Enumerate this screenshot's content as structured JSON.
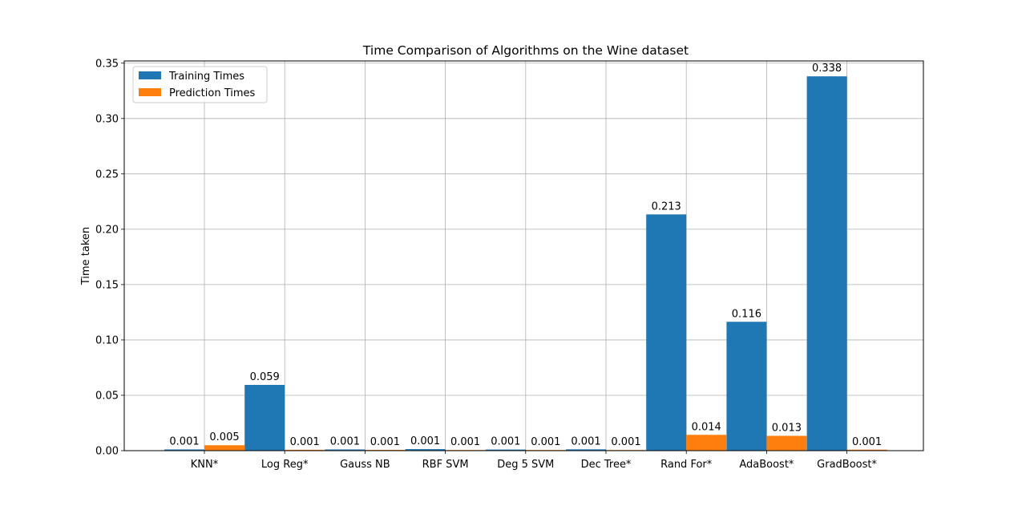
{
  "chart_data": {
    "type": "bar",
    "title": "Time Comparison of Algorithms on the Wine dataset",
    "xlabel": "",
    "ylabel": "Time taken",
    "categories": [
      "KNN*",
      "Log Reg*",
      "Gauss NB",
      "RBF SVM",
      "Deg 5 SVM",
      "Dec Tree*",
      "Rand For*",
      "AdaBoost*",
      "GradBoost*"
    ],
    "series": [
      {
        "name": "Training Times",
        "color": "#1f77b4",
        "values": [
          0.0011,
          0.0594,
          0.0011,
          0.0014,
          0.001,
          0.0012,
          0.2134,
          0.1164,
          0.3381
        ],
        "labels": [
          "0.001",
          "0.059",
          "0.001",
          "0.001",
          "0.001",
          "0.001",
          "0.213",
          "0.116",
          "0.338"
        ]
      },
      {
        "name": "Prediction Times",
        "color": "#ff7f0e",
        "values": [
          0.0049,
          0.0008,
          0.0007,
          0.0006,
          0.0006,
          0.0005,
          0.0143,
          0.0134,
          0.0009
        ],
        "labels": [
          "0.005",
          "0.001",
          "0.001",
          "0.001",
          "0.001",
          "0.001",
          "0.014",
          "0.013",
          "0.001"
        ]
      }
    ],
    "ylim": [
      0,
      0.352
    ],
    "yticks": [
      0.0,
      0.05,
      0.1,
      0.15,
      0.2,
      0.25,
      0.3,
      0.35
    ],
    "ytick_labels": [
      "0.00",
      "0.05",
      "0.10",
      "0.15",
      "0.20",
      "0.25",
      "0.30",
      "0.35"
    ],
    "grid": true,
    "legend_position": "top-left"
  }
}
